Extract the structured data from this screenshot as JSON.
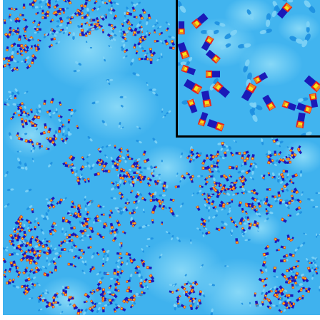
{
  "image": {
    "kind": "simulated field map with zoomed inset",
    "colors": {
      "background": "#3fb2ee",
      "background_light": "#7fd3f6",
      "background_dark": "#1d8fe0",
      "deep_blue": "#1a1ab8",
      "red": "#e8201c",
      "orange": "#f08a1a",
      "yellow": "#f4e21c",
      "inset_border": "#000000"
    },
    "inset": {
      "present": true,
      "description_hidden": true
    }
  }
}
